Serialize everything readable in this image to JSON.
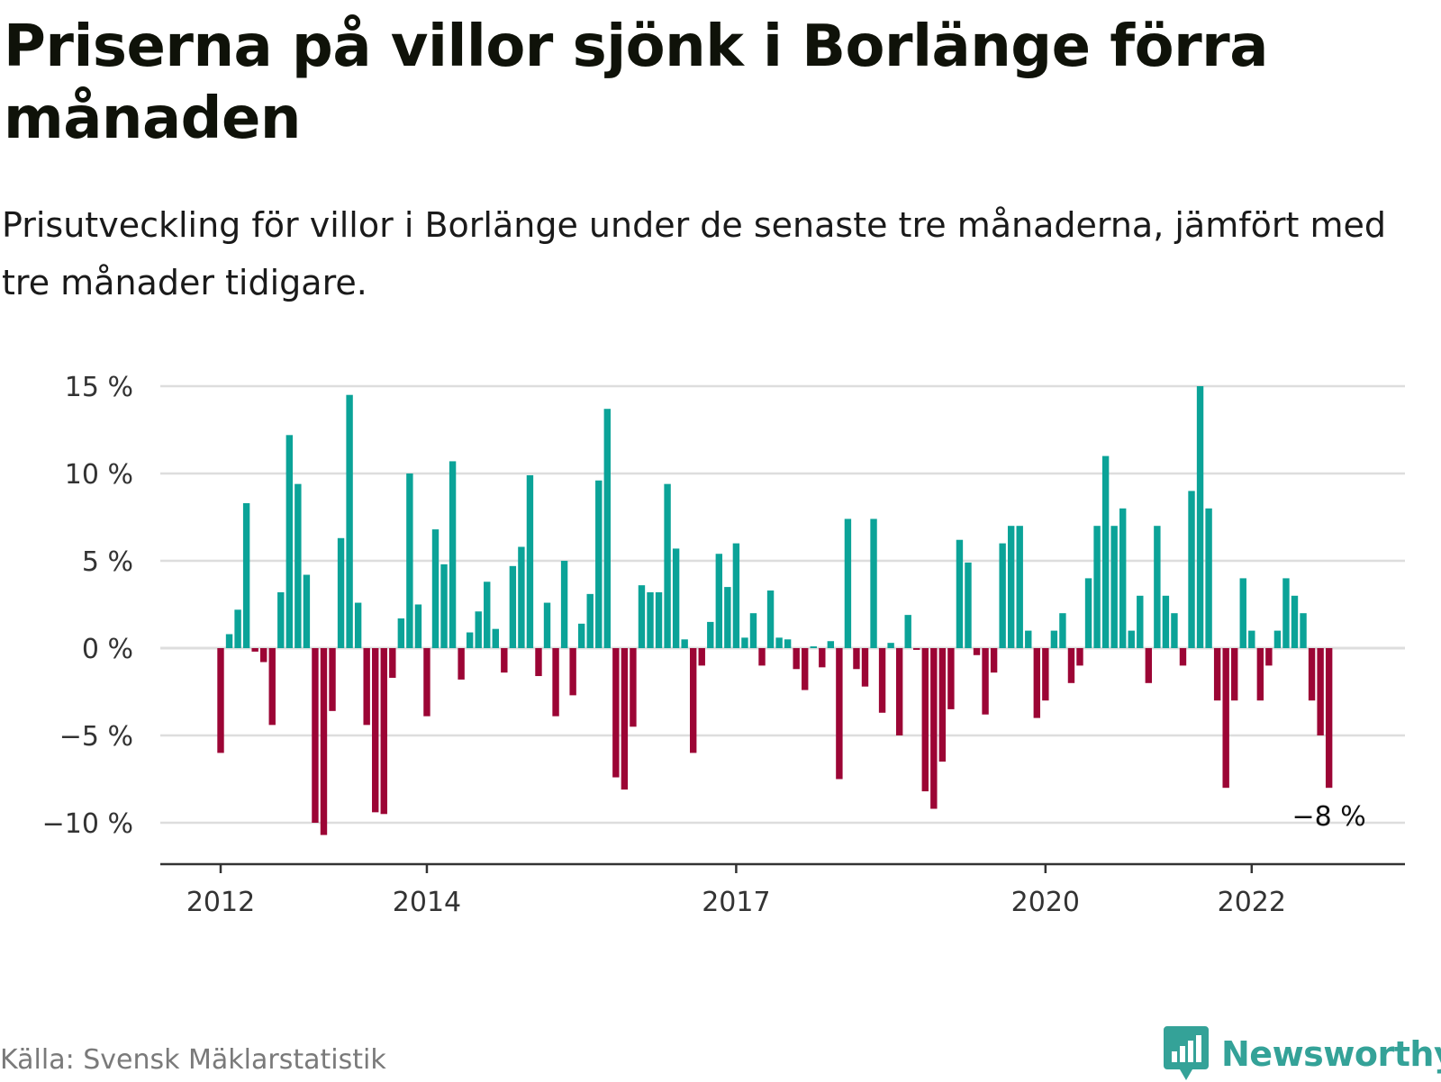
{
  "title": "Priserna på villor sjönk i Borlänge förra månaden",
  "subtitle": "Prisutveckling för villor i Borlänge under de senaste tre månaderna, jämfört med tre månader tidigare.",
  "source": "Källa: Svensk Mäklarstatistik",
  "brand": {
    "name": "Newsworthy",
    "logo": "newsworthy-logo-icon",
    "color": "#34a298"
  },
  "colors": {
    "positive": "#0ba398",
    "negative": "#9c0535",
    "grid": "#dddddd",
    "axis": "#333333"
  },
  "chart_data": {
    "type": "bar",
    "title": "Priserna på villor sjönk i Borlänge förra månaden",
    "xlabel": "",
    "ylabel": "",
    "x_start": "2012-01",
    "x_tick_labels": [
      "2012",
      "2014",
      "2017",
      "2020",
      "2022"
    ],
    "x_ticks": [
      "2012-01",
      "2014-01",
      "2017-01",
      "2020-01",
      "2022-01"
    ],
    "y_tick_labels": [
      "15 %",
      "10 %",
      "5 %",
      "0 %",
      "−5 %",
      "−10 %"
    ],
    "y_ticks": [
      15,
      10,
      5,
      0,
      -5,
      -10
    ],
    "ylim": [
      -12,
      15
    ],
    "grid": true,
    "annotation": {
      "text": "−8 %",
      "at": "last"
    },
    "values": [
      -6.0,
      0.8,
      2.2,
      8.3,
      -0.2,
      -0.8,
      -4.4,
      3.2,
      12.2,
      9.4,
      4.2,
      -10.0,
      -10.7,
      -3.6,
      6.3,
      14.5,
      2.6,
      -4.4,
      -9.4,
      -9.5,
      -1.7,
      1.7,
      10.0,
      2.5,
      -3.9,
      6.8,
      4.8,
      10.7,
      -1.8,
      0.9,
      2.1,
      3.8,
      1.1,
      -1.4,
      4.7,
      5.8,
      9.9,
      -1.6,
      2.6,
      -3.9,
      5.0,
      -2.7,
      1.4,
      3.1,
      9.6,
      13.7,
      -7.4,
      -8.1,
      -4.5,
      3.6,
      3.2,
      3.2,
      9.4,
      5.7,
      0.5,
      -6.0,
      -1.0,
      1.5,
      5.4,
      3.5,
      6.0,
      0.6,
      2.0,
      -1.0,
      3.3,
      0.6,
      0.5,
      -1.2,
      -2.4,
      0.1,
      -1.1,
      0.4,
      -7.5,
      7.4,
      -1.2,
      -2.2,
      7.4,
      -3.7,
      0.3,
      -5.0,
      1.9,
      -0.1,
      -8.2,
      -9.2,
      -6.5,
      -3.5,
      6.2,
      4.9,
      -0.4,
      -3.8,
      -1.4,
      6.0,
      7.0,
      7.0,
      1.0,
      -4.0,
      -3.0,
      1.0,
      2.0,
      -2.0,
      -1.0,
      4.0,
      7.0,
      11.0,
      7.0,
      8.0,
      1.0,
      3.0,
      -2.0,
      7.0,
      3.0,
      2.0,
      -1.0,
      9.0,
      15.0,
      8.0,
      -3.0,
      -8.0,
      -3.0,
      4.0,
      1.0,
      -3.0,
      -1.0,
      1.0,
      4.0,
      3.0,
      2.0,
      -3.0,
      -5.0,
      -8.0
    ]
  }
}
